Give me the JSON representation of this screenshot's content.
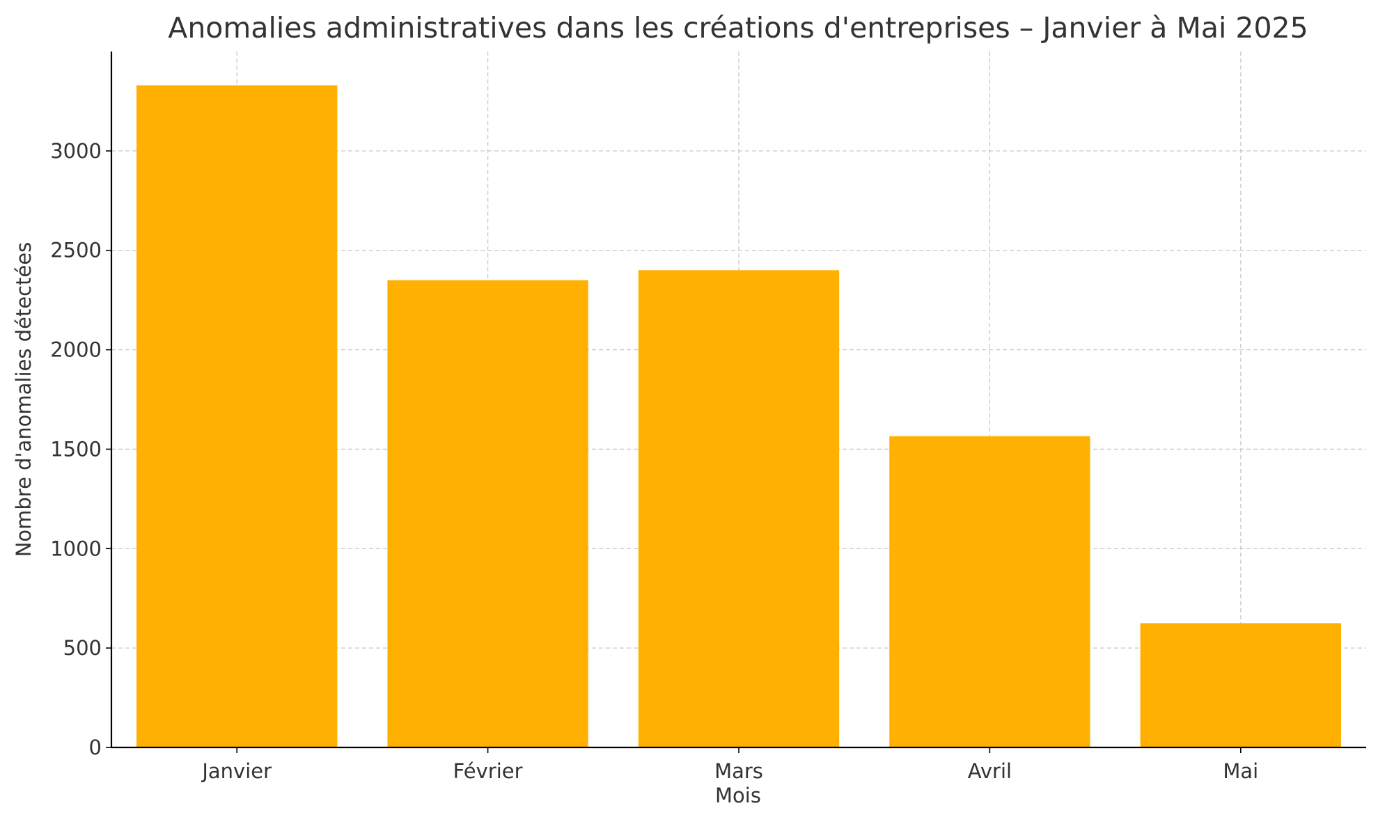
{
  "chart_data": {
    "type": "bar",
    "title": "Anomalies administratives dans les créations d'entreprises – Janvier à Mai 2025",
    "xlabel": "Mois",
    "ylabel": "Nombre d'anomalies détectées",
    "categories": [
      "Janvier",
      "Février",
      "Mars",
      "Avril",
      "Mai"
    ],
    "series": [
      {
        "values": [
          3330,
          2350,
          2400,
          1565,
          625
        ]
      }
    ],
    "ylim": [
      0,
      3500
    ],
    "yticks": [
      0,
      500,
      1000,
      1500,
      2000,
      2500,
      3000
    ],
    "ytick_labels": [
      "0",
      "500",
      "1000",
      "1500",
      "2000",
      "2500",
      "3000"
    ],
    "grid": true,
    "bar_color": "#FFB000"
  }
}
